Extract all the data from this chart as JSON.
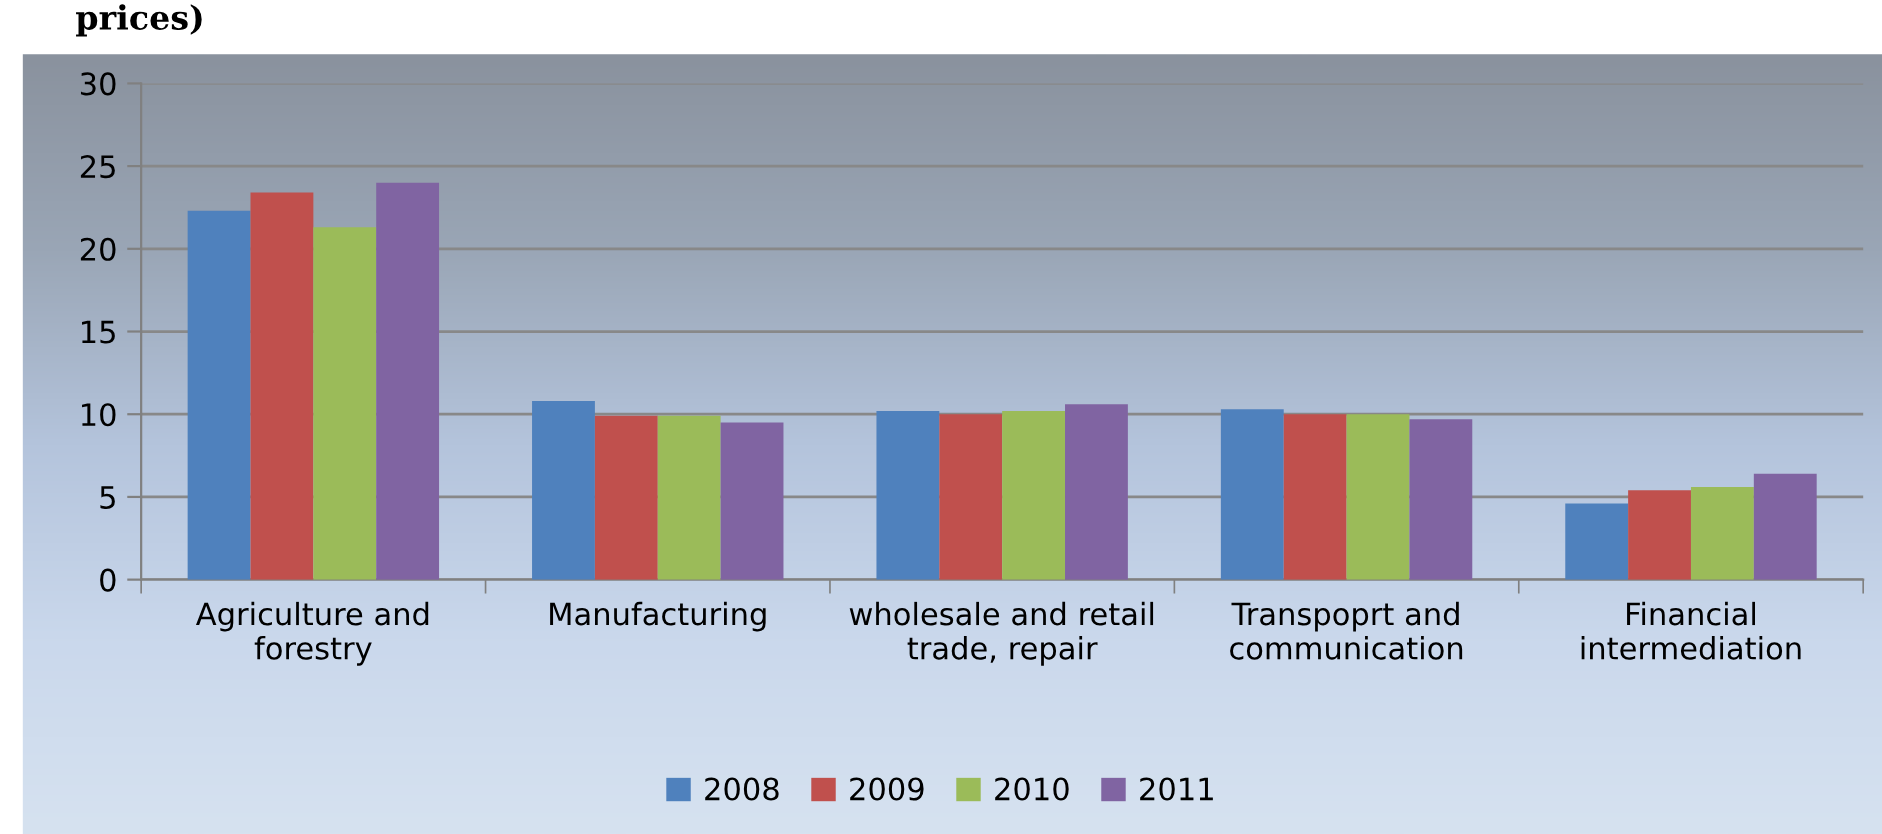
{
  "chart_data": {
    "type": "bar",
    "title": "prices)",
    "categories": [
      "Agriculture and\nforestry",
      "Manufacturing",
      "wholesale and retail\ntrade, repair",
      "Transpoprt and\ncommunication",
      "Financial\nintermediation"
    ],
    "series": [
      {
        "name": "2008",
        "color": "#4f81bd",
        "values": [
          22.3,
          10.8,
          10.2,
          10.3,
          4.6
        ]
      },
      {
        "name": "2009",
        "color": "#c0504d",
        "values": [
          23.4,
          9.9,
          10.0,
          10.0,
          5.4
        ]
      },
      {
        "name": "2010",
        "color": "#9bbb59",
        "values": [
          21.3,
          9.9,
          10.2,
          10.0,
          5.6
        ]
      },
      {
        "name": "2011",
        "color": "#8064a2",
        "values": [
          24.0,
          9.5,
          10.6,
          9.7,
          6.4
        ]
      }
    ],
    "ylim": [
      0,
      30
    ],
    "yticks": [
      0,
      5,
      10,
      15,
      20,
      25,
      30
    ],
    "grid": "y",
    "legend": "bottom"
  }
}
